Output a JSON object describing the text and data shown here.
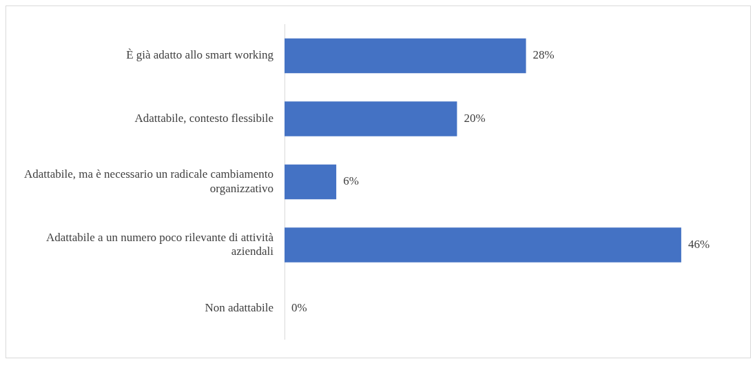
{
  "chart_data": {
    "type": "bar",
    "orientation": "horizontal",
    "categories": [
      "È già adatto allo smart working",
      "Adattabile, contesto flessibile",
      "Adattabile, ma è necessario un radicale cambiamento organizzativo",
      "Adattabile a un numero poco rilevante di attività aziendali",
      "Non adattabile"
    ],
    "values": [
      28,
      20,
      6,
      46,
      0
    ],
    "value_labels": [
      "28%",
      "20%",
      "6%",
      "46%",
      "0%"
    ],
    "color": "#4472c4"
  }
}
